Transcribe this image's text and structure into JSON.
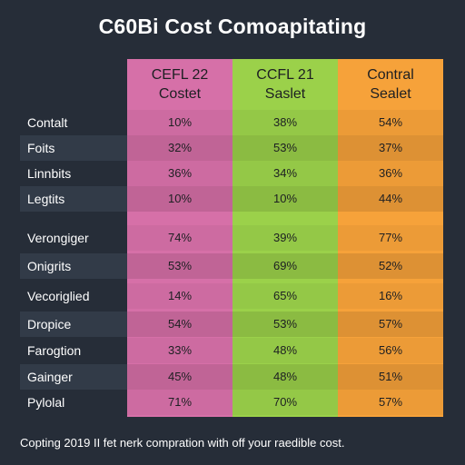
{
  "title": "C60Bi Cost Comoapitating",
  "footer": "Copting 2019 II fet nerk compration with off your raedible cost.",
  "colors": {
    "background": "#262d38",
    "pink": "#d670a8",
    "green": "#9bd14a",
    "orange": "#f6a23a"
  },
  "chart_data": {
    "type": "table",
    "columns": [
      {
        "line1": "CEFL 22",
        "line2": "Costet"
      },
      {
        "line1": "CCFL 21",
        "line2": "Saslet"
      },
      {
        "line1": "Contral",
        "line2": "Sealet"
      }
    ],
    "rows": [
      {
        "label": "Contalt",
        "values": [
          "10%",
          "38%",
          "54%"
        ]
      },
      {
        "label": "Foits",
        "values": [
          "32%",
          "53%",
          "37%"
        ]
      },
      {
        "label": "Linnbits",
        "values": [
          "36%",
          "34%",
          "36%"
        ]
      },
      {
        "label": "Legtits",
        "values": [
          "10%",
          "10%",
          "44%"
        ]
      },
      {
        "label": "Verongiger",
        "values": [
          "74%",
          "39%",
          "77%"
        ]
      },
      {
        "label": "Onigrits",
        "values": [
          "53%",
          "69%",
          "52%"
        ]
      },
      {
        "label": "Vecoriglied",
        "values": [
          "14%",
          "65%",
          "16%"
        ]
      },
      {
        "label": "Dropice",
        "values": [
          "54%",
          "53%",
          "57%"
        ]
      },
      {
        "label": "Farogtion",
        "values": [
          "33%",
          "48%",
          "56%"
        ]
      },
      {
        "label": "Gainger",
        "values": [
          "45%",
          "48%",
          "51%"
        ]
      },
      {
        "label": "Pylolal",
        "values": [
          "71%",
          "70%",
          "57%"
        ]
      }
    ]
  }
}
